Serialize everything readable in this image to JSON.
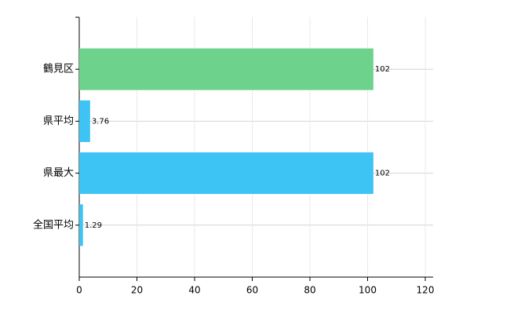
{
  "chart_data": {
    "type": "bar",
    "orientation": "horizontal",
    "categories": [
      "鶴見区",
      "県平均",
      "県最大",
      "全国平均"
    ],
    "values": [
      102,
      3.76,
      102,
      1.29
    ],
    "colors": [
      "#6dd28c",
      "#3ec3f5",
      "#3ec3f5",
      "#3ec3f5"
    ],
    "xlim": [
      0,
      120
    ],
    "xticks": [
      0,
      20,
      40,
      60,
      80,
      100,
      120
    ],
    "grid": true
  }
}
